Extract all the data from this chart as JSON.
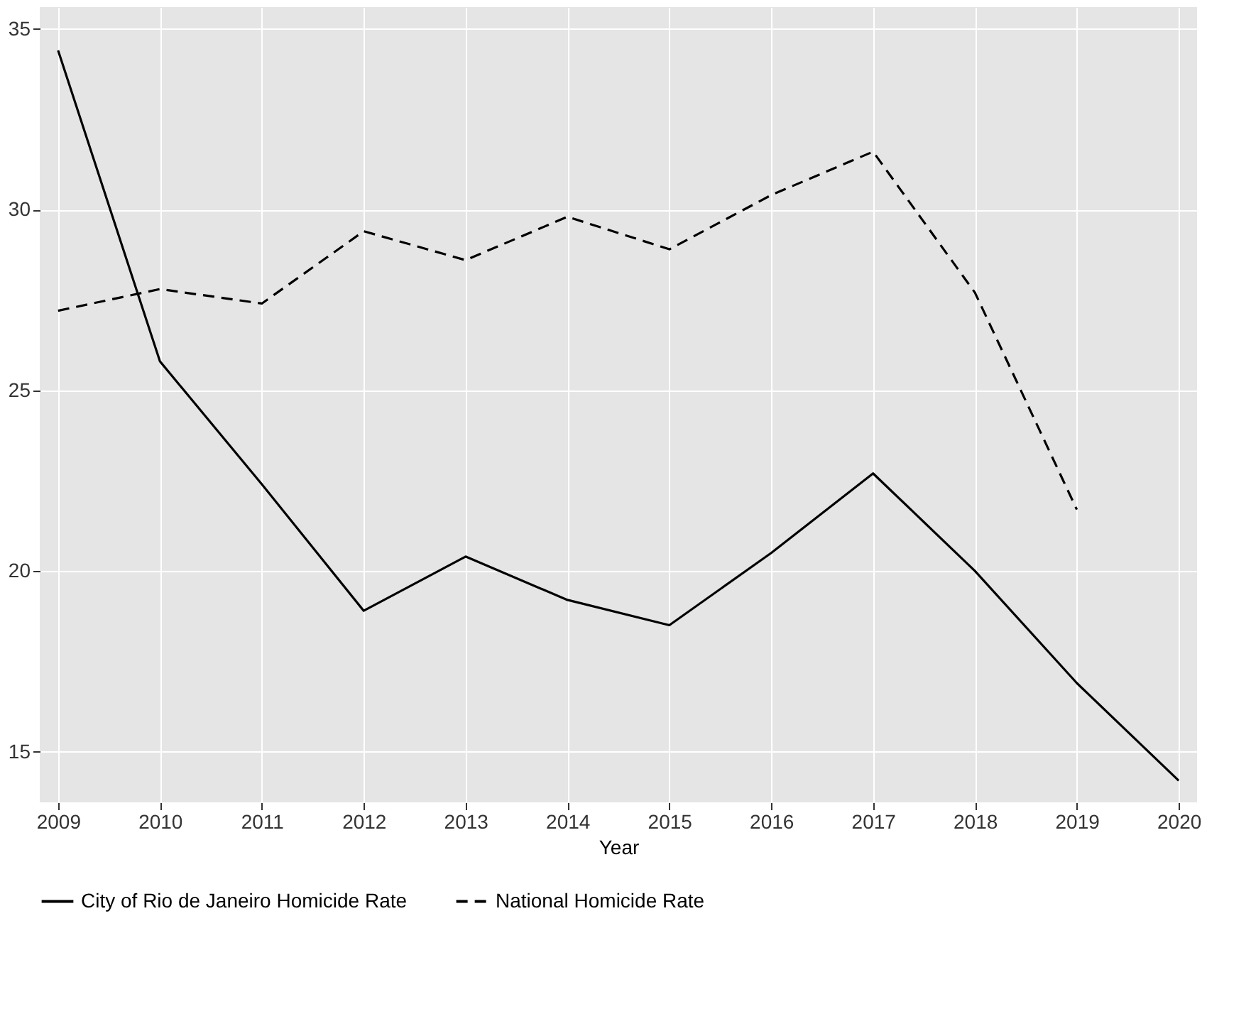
{
  "chart_data": {
    "type": "line",
    "xlabel": "Year",
    "x": [
      2009,
      2010,
      2011,
      2012,
      2013,
      2014,
      2015,
      2016,
      2017,
      2018,
      2019,
      2020
    ],
    "series": [
      {
        "name": "City of Rio de Janeiro Homicide Rate",
        "color": "#000000",
        "line_style": "solid",
        "values": [
          34.4,
          25.8,
          22.4,
          18.9,
          20.4,
          19.2,
          18.5,
          20.5,
          22.7,
          20.0,
          16.9,
          14.2
        ]
      },
      {
        "name": "National Homicide Rate",
        "color": "#000000",
        "line_style": "dashed",
        "values": [
          27.2,
          27.8,
          27.4,
          29.4,
          28.6,
          29.8,
          28.9,
          30.4,
          31.6,
          27.7,
          21.7,
          null
        ]
      }
    ],
    "xlim": [
      2008.82,
      2020.18
    ],
    "xticks": [
      2009,
      2010,
      2011,
      2012,
      2013,
      2014,
      2015,
      2016,
      2017,
      2018,
      2019,
      2020
    ],
    "ylim": [
      13.6,
      35.6
    ],
    "yticks": [
      15,
      20,
      25,
      30,
      35
    ],
    "grid": true,
    "legend": "bottom",
    "marker": "none"
  }
}
